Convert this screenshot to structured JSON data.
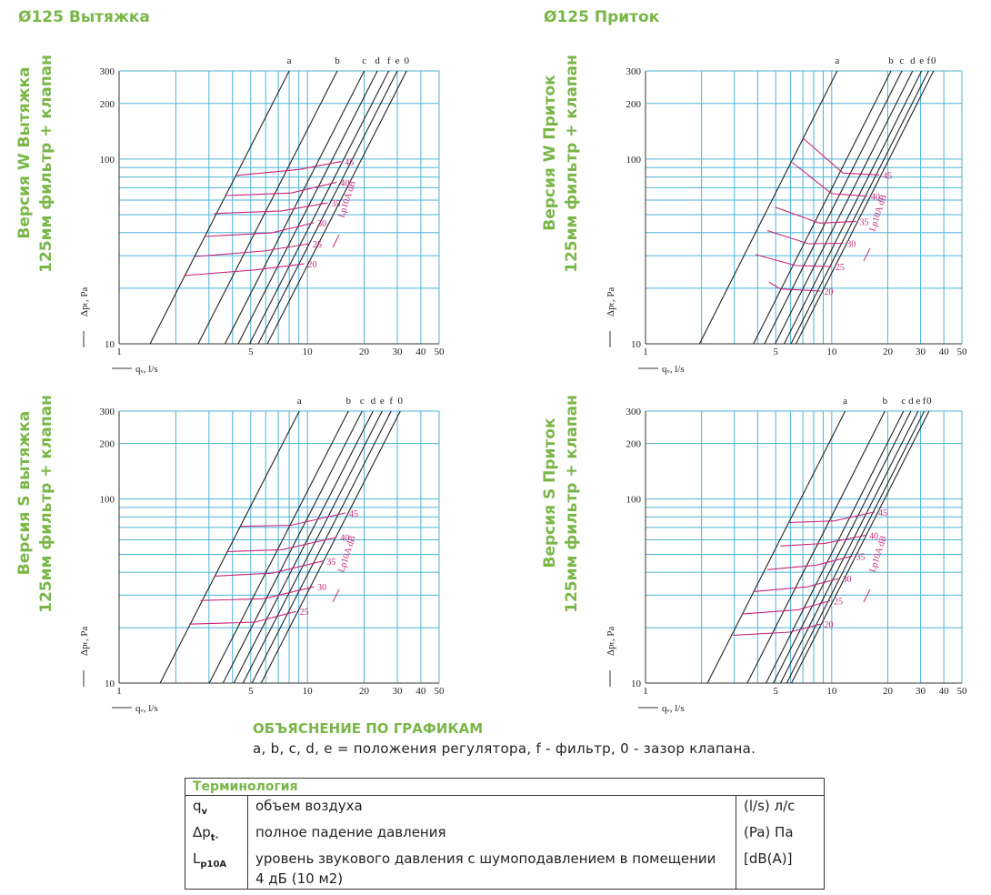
{
  "sections": [
    "Ø125 Вытяжка",
    "Ø125 Приток"
  ],
  "chart_data": [
    {
      "type": "line",
      "title": "Версия W Вытяжка",
      "subtitle": "125мм фильтр + клапан",
      "xlabel": "qᵥ, l/s",
      "ylabel": "Δpₜ, Pa",
      "annotation": "Lp10A dB",
      "xlog": true,
      "ylog": true,
      "xlim": [
        1,
        50
      ],
      "ylim": [
        10,
        300
      ],
      "xticks": [
        1,
        5,
        10,
        20,
        30,
        40,
        50
      ],
      "yticks": [
        10,
        100,
        200,
        300
      ],
      "grid_x": [
        2,
        3,
        4,
        6,
        7,
        8,
        9
      ],
      "grid_y": [
        20,
        30,
        40,
        50,
        60,
        70,
        80,
        90
      ],
      "grid_color": "#4db3d6",
      "series": [
        {
          "name": "a",
          "color": "#222222",
          "x": [
            1.46,
            8.0
          ],
          "values": [
            10,
            300
          ]
        },
        {
          "name": "b",
          "color": "#222222",
          "x": [
            2.63,
            14.4
          ],
          "values": [
            10,
            300
          ]
        },
        {
          "name": "c",
          "color": "#222222",
          "x": [
            3.65,
            20.0
          ],
          "values": [
            10,
            300
          ]
        },
        {
          "name": "d",
          "color": "#222222",
          "x": [
            4.29,
            23.5
          ],
          "values": [
            10,
            300
          ]
        },
        {
          "name": "f",
          "color": "#222222",
          "x": [
            4.93,
            27.0
          ],
          "values": [
            10,
            300
          ]
        },
        {
          "name": "e",
          "color": "#222222",
          "x": [
            5.48,
            30.0
          ],
          "values": [
            10,
            300
          ]
        },
        {
          "name": "0",
          "color": "#222222",
          "x": [
            6.13,
            33.6
          ],
          "values": [
            10,
            300
          ]
        },
        {
          "name": "45",
          "color": "#c8267a",
          "x": [
            4.2,
            9.1,
            15.1
          ],
          "values": [
            81.5,
            88,
            97
          ]
        },
        {
          "name": "40",
          "color": "#c8267a",
          "x": [
            3.7,
            8.2,
            14.3
          ],
          "values": [
            63.5,
            65.5,
            75
          ]
        },
        {
          "name": "35",
          "color": "#c8267a",
          "x": [
            3.2,
            7.3,
            12.8
          ],
          "values": [
            50.7,
            52.4,
            57.9
          ]
        },
        {
          "name": "30",
          "color": "#c8267a",
          "x": [
            2.85,
            6.5,
            10.8
          ],
          "values": [
            38.1,
            39.9,
            45.2
          ]
        },
        {
          "name": "25",
          "color": "#c8267a",
          "x": [
            2.55,
            5.85,
            10.2
          ],
          "values": [
            29.7,
            31.8,
            34.8
          ]
        },
        {
          "name": "20",
          "color": "#c8267a",
          "x": [
            2.2,
            5.25,
            9.6
          ],
          "values": [
            23.4,
            25.1,
            27.1
          ]
        }
      ]
    },
    {
      "type": "line",
      "title": "Версия W Приток",
      "subtitle": "125мм фильтр + клапан",
      "xlabel": "qᵥ, l/s",
      "ylabel": "Δpₜ, Pa",
      "annotation": "Lp10A dB",
      "xlog": true,
      "ylog": true,
      "xlim": [
        1,
        50
      ],
      "ylim": [
        10,
        300
      ],
      "xticks": [
        1,
        5,
        10,
        20,
        30,
        40,
        50
      ],
      "yticks": [
        10,
        100,
        200,
        300
      ],
      "grid_x": [
        2,
        3,
        4,
        6,
        7,
        8,
        9
      ],
      "grid_y": [
        20,
        30,
        40,
        50,
        60,
        70,
        80,
        90
      ],
      "grid_color": "#4db3d6",
      "series": [
        {
          "name": "a",
          "color": "#222222",
          "x": [
            1.95,
            10.7
          ],
          "values": [
            10,
            300
          ]
        },
        {
          "name": "b",
          "color": "#222222",
          "x": [
            3.8,
            20.8
          ],
          "values": [
            10,
            300
          ]
        },
        {
          "name": "c",
          "color": "#222222",
          "x": [
            4.35,
            23.8
          ],
          "values": [
            10,
            300
          ]
        },
        {
          "name": "d",
          "color": "#222222",
          "x": [
            4.97,
            27.2
          ],
          "values": [
            10,
            300
          ]
        },
        {
          "name": "e",
          "color": "#222222",
          "x": [
            5.55,
            30.4
          ],
          "values": [
            10,
            300
          ]
        },
        {
          "name": "f",
          "color": "#222222",
          "x": [
            6.04,
            33.1
          ],
          "values": [
            10,
            300
          ]
        },
        {
          "name": "0",
          "color": "#222222",
          "x": [
            6.43,
            35.2
          ],
          "values": [
            10,
            300
          ]
        },
        {
          "name": "45",
          "color": "#c8267a",
          "x": [
            7.0,
            11.5,
            18.0
          ],
          "values": [
            130,
            84,
            82
          ]
        },
        {
          "name": "40",
          "color": "#c8267a",
          "x": [
            6.13,
            10.0,
            15.5
          ],
          "values": [
            96,
            65,
            63
          ]
        },
        {
          "name": "35",
          "color": "#c8267a",
          "x": [
            4.97,
            8.6,
            13.5
          ],
          "values": [
            54.9,
            45,
            46
          ]
        },
        {
          "name": "30",
          "color": "#c8267a",
          "x": [
            4.5,
            7.5,
            11.5
          ],
          "values": [
            41,
            34.8,
            35
          ]
        },
        {
          "name": "25",
          "color": "#c8267a",
          "x": [
            3.9,
            6.4,
            10.0
          ],
          "values": [
            30.4,
            26.5,
            26.2
          ]
        },
        {
          "name": "20",
          "color": "#c8267a",
          "x": [
            4.6,
            5.3,
            8.7
          ],
          "values": [
            21.6,
            19.8,
            19.3
          ]
        }
      ]
    },
    {
      "type": "line",
      "title": "Версия S вытяжка",
      "subtitle": "125мм фильтр + клапан",
      "xlabel": "qᵥ, l/s",
      "ylabel": "Δpₜ, Pa",
      "annotation": "Lp10A dB",
      "xlog": true,
      "ylog": true,
      "xlim": [
        1,
        50
      ],
      "ylim": [
        10,
        300
      ],
      "xticks": [
        1,
        5,
        10,
        20,
        30,
        40,
        50
      ],
      "yticks": [
        10,
        100,
        200,
        300
      ],
      "grid_x": [
        2,
        3,
        4,
        6,
        7,
        8,
        9
      ],
      "grid_y": [
        20,
        30,
        40,
        50,
        60,
        70,
        80,
        90
      ],
      "grid_color": "#4db3d6",
      "series": [
        {
          "name": "a",
          "color": "#222222",
          "x": [
            1.65,
            9.05
          ],
          "values": [
            10,
            300
          ]
        },
        {
          "name": "b",
          "color": "#222222",
          "x": [
            3.01,
            16.5
          ],
          "values": [
            10,
            300
          ]
        },
        {
          "name": "c",
          "color": "#222222",
          "x": [
            3.56,
            19.5
          ],
          "values": [
            10,
            300
          ]
        },
        {
          "name": "d",
          "color": "#222222",
          "x": [
            4.07,
            22.3
          ],
          "values": [
            10,
            300
          ]
        },
        {
          "name": "e",
          "color": "#222222",
          "x": [
            4.55,
            24.9
          ],
          "values": [
            10,
            300
          ]
        },
        {
          "name": "f",
          "color": "#222222",
          "x": [
            5.08,
            27.8
          ],
          "values": [
            10,
            300
          ]
        },
        {
          "name": "0",
          "color": "#222222",
          "x": [
            5.68,
            31.1
          ],
          "values": [
            10,
            300
          ]
        },
        {
          "name": "45",
          "color": "#c8267a",
          "x": [
            4.44,
            8.2,
            15.9
          ],
          "values": [
            71,
            72,
            84
          ]
        },
        {
          "name": "40",
          "color": "#c8267a",
          "x": [
            3.76,
            7.3,
            14.3
          ],
          "values": [
            51.8,
            53,
            62
          ]
        },
        {
          "name": "35",
          "color": "#c8267a",
          "x": [
            3.2,
            6.5,
            12.1
          ],
          "values": [
            38.1,
            39.5,
            46
          ]
        },
        {
          "name": "30",
          "color": "#c8267a",
          "x": [
            2.7,
            5.85,
            10.8
          ],
          "values": [
            28.1,
            28.7,
            33.3
          ]
        },
        {
          "name": "25",
          "color": "#c8267a",
          "x": [
            2.36,
            5.25,
            8.7
          ],
          "values": [
            20.9,
            21.4,
            24.5
          ]
        }
      ]
    },
    {
      "type": "line",
      "title": "Версия S Приток",
      "subtitle": "125мм фильтр + клапан",
      "xlabel": "qᵥ, l/s",
      "ylabel": "Δpₜ, Pa",
      "annotation": "Lp10A dB",
      "xlog": true,
      "ylog": true,
      "xlim": [
        1,
        50
      ],
      "ylim": [
        10,
        300
      ],
      "xticks": [
        1,
        5,
        10,
        20,
        30,
        40,
        50
      ],
      "yticks": [
        10,
        100,
        200,
        300
      ],
      "grid_x": [
        2,
        3,
        4,
        6,
        7,
        8,
        9
      ],
      "grid_y": [
        20,
        30,
        40,
        50,
        60,
        70,
        80,
        90
      ],
      "grid_color": "#4db3d6",
      "series": [
        {
          "name": "a",
          "color": "#222222",
          "x": [
            2.15,
            11.8
          ],
          "values": [
            10,
            300
          ]
        },
        {
          "name": "b",
          "color": "#222222",
          "x": [
            3.52,
            19.3
          ],
          "values": [
            10,
            300
          ]
        },
        {
          "name": "c",
          "color": "#222222",
          "x": [
            4.44,
            24.3
          ],
          "values": [
            10,
            300
          ]
        },
        {
          "name": "d",
          "color": "#222222",
          "x": [
            4.86,
            26.6
          ],
          "values": [
            10,
            300
          ]
        },
        {
          "name": "e",
          "color": "#222222",
          "x": [
            5.31,
            29.1
          ],
          "values": [
            10,
            300
          ]
        },
        {
          "name": "f",
          "color": "#222222",
          "x": [
            5.73,
            31.4
          ],
          "values": [
            10,
            300
          ]
        },
        {
          "name": "0",
          "color": "#222222",
          "x": [
            6.08,
            33.3
          ],
          "values": [
            10,
            300
          ]
        },
        {
          "name": "45",
          "color": "#c8267a",
          "x": [
            5.93,
            10.3,
            17.0
          ],
          "values": [
            74.5,
            76,
            85
          ]
        },
        {
          "name": "40",
          "color": "#c8267a",
          "x": [
            5.3,
            9.2,
            15.2
          ],
          "values": [
            55.5,
            57.4,
            63.5
          ]
        },
        {
          "name": "35",
          "color": "#c8267a",
          "x": [
            4.5,
            8.25,
            12.9
          ],
          "values": [
            41.3,
            43.7,
            49
          ]
        },
        {
          "name": "30",
          "color": "#c8267a",
          "x": [
            3.8,
            7.4,
            10.9
          ],
          "values": [
            31.4,
            33.3,
            37
          ]
        },
        {
          "name": "25",
          "color": "#c8267a",
          "x": [
            3.3,
            6.6,
            9.8
          ],
          "values": [
            23.7,
            25,
            28
          ]
        },
        {
          "name": "20",
          "color": "#c8267a",
          "x": [
            2.95,
            5.95,
            8.7
          ],
          "values": [
            18.2,
            18.9,
            20.9
          ]
        }
      ]
    }
  ],
  "explanation": {
    "title": "ОБЪЯСНЕНИЕ ПО ГРАФИКАМ",
    "text": "a, b, c, d, e = положения регулятора, f - фильтр, 0 - зазор клапана."
  },
  "table": {
    "title": "Терминология",
    "rows": [
      {
        "symbol": "q",
        "sub": "v",
        "desc": "объем воздуха",
        "unit": "(l/s) л/с"
      },
      {
        "symbol": "Δp",
        "sub": "t·",
        "desc": "полное падение давления",
        "unit": "(Pa) Па"
      },
      {
        "symbol": "L",
        "sub": "p10A",
        "desc": "уровень звукового давления с шумоподавлением в помещении 4 дБ (10 м2)",
        "unit": "[dB(A)]"
      }
    ]
  }
}
